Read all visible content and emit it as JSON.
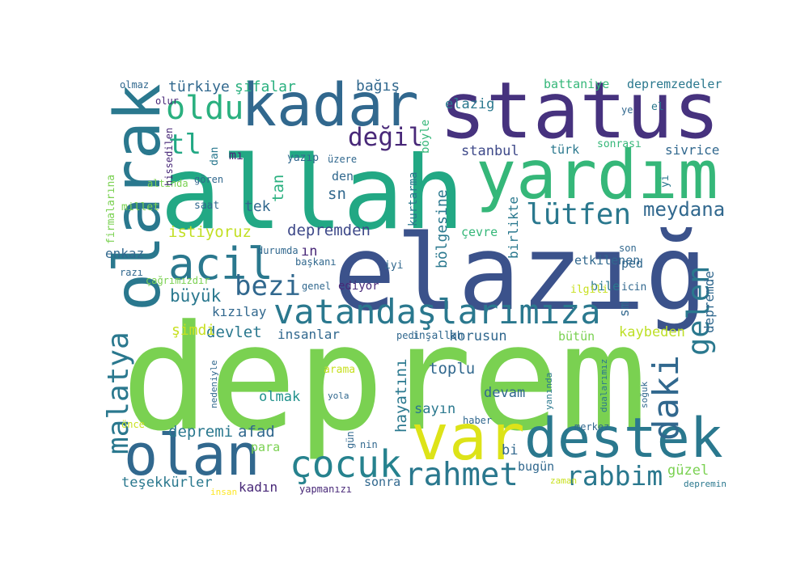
{
  "chart_data": {
    "type": "wordcloud",
    "words": [
      {
        "text": "deprem",
        "weight": 180,
        "color": "#7ad151"
      },
      {
        "text": "elazığ",
        "weight": 128,
        "color": "#3b528b"
      },
      {
        "text": "allah",
        "weight": 125,
        "color": "#22a884"
      },
      {
        "text": "status",
        "weight": 96,
        "color": "#46327e"
      },
      {
        "text": "yardım",
        "weight": 83,
        "color": "#35b779"
      },
      {
        "text": "olarak",
        "weight": 78,
        "color": "#2a788e"
      },
      {
        "text": "kadar",
        "weight": 73,
        "color": "#31688e"
      },
      {
        "text": "destek",
        "weight": 68,
        "color": "#2a788e"
      },
      {
        "text": "var",
        "weight": 78,
        "color": "#dde318"
      },
      {
        "text": "olan",
        "weight": 70,
        "color": "#31688e"
      },
      {
        "text": "acil",
        "weight": 54,
        "color": "#2a788e"
      },
      {
        "text": "vatandaşlarımıza",
        "weight": 42,
        "color": "#2a788e"
      },
      {
        "text": "çocuk",
        "weight": 46,
        "color": "#26828e"
      },
      {
        "text": "rahmet",
        "weight": 39,
        "color": "#2a788e"
      },
      {
        "text": "rabbim",
        "weight": 33,
        "color": "#2a788e"
      },
      {
        "text": "oldu",
        "weight": 40,
        "color": "#2ab07f"
      },
      {
        "text": "değil",
        "weight": 31,
        "color": "#482878"
      },
      {
        "text": "lütfen",
        "weight": 36,
        "color": "#2a788e"
      },
      {
        "text": "bezi",
        "weight": 34,
        "color": "#31688e"
      },
      {
        "text": "daki",
        "weight": 44,
        "color": "#31688e"
      },
      {
        "text": "gelen",
        "weight": 37,
        "color": "#2a788e"
      },
      {
        "text": "malatya",
        "weight": 36,
        "color": "#2a788e"
      },
      {
        "text": "tl",
        "weight": 34,
        "color": "#22a884"
      },
      {
        "text": "meydana",
        "weight": 24,
        "color": "#31688e"
      },
      {
        "text": "türkiye",
        "weight": 18,
        "color": "#31688e"
      },
      {
        "text": "şifalar",
        "weight": 18,
        "color": "#2ab07f"
      },
      {
        "text": "bağış",
        "weight": 18,
        "color": "#31688e"
      },
      {
        "text": "elazig",
        "weight": 17,
        "color": "#2a788e"
      },
      {
        "text": "battaniye",
        "weight": 15,
        "color": "#35b779"
      },
      {
        "text": "depremzedeler",
        "weight": 15,
        "color": "#2a788e"
      },
      {
        "text": "stanbul",
        "weight": 17,
        "color": "#3e4989"
      },
      {
        "text": "sivrice",
        "weight": 16,
        "color": "#31688e"
      },
      {
        "text": "türk",
        "weight": 15,
        "color": "#2a788e"
      },
      {
        "text": "sonrası",
        "weight": 13,
        "color": "#35b779"
      },
      {
        "text": "istiyoruz",
        "weight": 19,
        "color": "#c2df23"
      },
      {
        "text": "depremden",
        "weight": 19,
        "color": "#3e4989"
      },
      {
        "text": "etkilenen",
        "weight": 15,
        "color": "#31688e"
      },
      {
        "text": "büyük",
        "weight": 21,
        "color": "#2a788e"
      },
      {
        "text": "kızılay",
        "weight": 16,
        "color": "#31688e"
      },
      {
        "text": "devlet",
        "weight": 19,
        "color": "#2a788e"
      },
      {
        "text": "şimdi",
        "weight": 18,
        "color": "#c8e020"
      },
      {
        "text": "insanlar",
        "weight": 16,
        "color": "#31688e"
      },
      {
        "text": "korusun",
        "weight": 17,
        "color": "#31688e"
      },
      {
        "text": "bütün",
        "weight": 15,
        "color": "#7ad151"
      },
      {
        "text": "kaybeden",
        "weight": 17,
        "color": "#bddf26"
      },
      {
        "text": "toplu",
        "weight": 19,
        "color": "#31688e"
      },
      {
        "text": "devam",
        "weight": 17,
        "color": "#31688e"
      },
      {
        "text": "sayın",
        "weight": 17,
        "color": "#2a788e"
      },
      {
        "text": "olmak",
        "weight": 17,
        "color": "#21918c"
      },
      {
        "text": "depremi",
        "weight": 19,
        "color": "#2a788e"
      },
      {
        "text": "afad",
        "weight": 19,
        "color": "#31688e"
      },
      {
        "text": "para",
        "weight": 15,
        "color": "#7ad151"
      },
      {
        "text": "teşekkürler",
        "weight": 17,
        "color": "#2a788e"
      },
      {
        "text": "kadın",
        "weight": 16,
        "color": "#482878"
      },
      {
        "text": "sonra",
        "weight": 15,
        "color": "#31688e"
      },
      {
        "text": "bugün",
        "weight": 15,
        "color": "#31688e"
      },
      {
        "text": "güzel",
        "weight": 17,
        "color": "#7ad151"
      },
      {
        "text": "hayatını",
        "weight": 19,
        "color": "#2a788e"
      },
      {
        "text": "sn",
        "weight": 19,
        "color": "#31688e"
      },
      {
        "text": "den",
        "weight": 15,
        "color": "#31688e"
      },
      {
        "text": "tek",
        "weight": 18,
        "color": "#31688e"
      },
      {
        "text": "tan",
        "weight": 19,
        "color": "#2ab07f"
      },
      {
        "text": "kurtarma",
        "weight": 14,
        "color": "#2a788e"
      },
      {
        "text": "bölgesine",
        "weight": 18,
        "color": "#2a788e"
      },
      {
        "text": "birlikte",
        "weight": 16,
        "color": "#2a788e"
      },
      {
        "text": "depremde",
        "weight": 16,
        "color": "#31688e"
      },
      {
        "text": "çevre",
        "weight": 15,
        "color": "#35b779"
      },
      {
        "text": "bile",
        "weight": 15,
        "color": "#2a788e"
      },
      {
        "text": "ped",
        "weight": 15,
        "color": "#31688e"
      },
      {
        "text": "son",
        "weight": 12,
        "color": "#31688e"
      },
      {
        "text": "ilgili",
        "weight": 13,
        "color": "#c8e020"
      },
      {
        "text": "icin",
        "weight": 13,
        "color": "#31688e"
      },
      {
        "text": "ediyor",
        "weight": 14,
        "color": "#482878"
      },
      {
        "text": "genel",
        "weight": 12,
        "color": "#31688e"
      },
      {
        "text": "başkanı",
        "weight": 12,
        "color": "#31688e"
      },
      {
        "text": "iyi",
        "weight": 13,
        "color": "#31688e"
      },
      {
        "text": "sm",
        "weight": 16,
        "color": "#31688e"
      },
      {
        "text": "ın",
        "weight": 17,
        "color": "#482878"
      },
      {
        "text": "durumda",
        "weight": 12,
        "color": "#31688e"
      },
      {
        "text": "enkaz",
        "weight": 16,
        "color": "#31688e"
      },
      {
        "text": "millet",
        "weight": 13,
        "color": "#7ad151"
      },
      {
        "text": "saat",
        "weight": 13,
        "color": "#31688e"
      },
      {
        "text": "altında",
        "weight": 12,
        "color": "#7ad151"
      },
      {
        "text": "gören",
        "weight": 12,
        "color": "#31688e"
      },
      {
        "text": "yazıp",
        "weight": 13,
        "color": "#31688e"
      },
      {
        "text": "üzere",
        "weight": 12,
        "color": "#31688e"
      },
      {
        "text": "mı",
        "weight": 15,
        "color": "#482878"
      },
      {
        "text": "dan",
        "weight": 13,
        "color": "#2a788e"
      },
      {
        "text": "böyle",
        "weight": 14,
        "color": "#35b779"
      },
      {
        "text": "çağrımızdır",
        "weight": 12,
        "color": "#7ad151"
      },
      {
        "text": "razı",
        "weight": 12,
        "color": "#31688e"
      },
      {
        "text": "firmalarına",
        "weight": 13,
        "color": "#7ad151"
      },
      {
        "text": "hissedilen",
        "weight": 12,
        "color": "#482878"
      },
      {
        "text": "olmaz",
        "weight": 12,
        "color": "#31688e"
      },
      {
        "text": "olur",
        "weight": 12,
        "color": "#482878"
      },
      {
        "text": "ye",
        "weight": 12,
        "color": "#31688e"
      },
      {
        "text": "el",
        "weight": 13,
        "color": "#2a788e"
      },
      {
        "text": "yi",
        "weight": 13,
        "color": "#2a788e"
      },
      {
        "text": "pedi",
        "weight": 12,
        "color": "#31688e"
      },
      {
        "text": "inşallah",
        "weight": 13,
        "color": "#31688e"
      },
      {
        "text": "arama",
        "weight": 13,
        "color": "#c8e020"
      },
      {
        "text": "yola",
        "weight": 11,
        "color": "#31688e"
      },
      {
        "text": "haber",
        "weight": 12,
        "color": "#31688e"
      },
      {
        "text": "bi",
        "weight": 17,
        "color": "#31688e"
      },
      {
        "text": "gün",
        "weight": 12,
        "color": "#31688e"
      },
      {
        "text": "nin",
        "weight": 12,
        "color": "#31688e"
      },
      {
        "text": "merkez",
        "weight": 12,
        "color": "#31688e"
      },
      {
        "text": "soğuk",
        "weight": 11,
        "color": "#31688e"
      },
      {
        "text": "önce",
        "weight": 12,
        "color": "#c8e020"
      },
      {
        "text": "yapmanızı",
        "weight": 12,
        "color": "#482878"
      },
      {
        "text": "zaman",
        "weight": 11,
        "color": "#c8e020"
      },
      {
        "text": "depremin",
        "weight": 11,
        "color": "#2a788e"
      },
      {
        "text": "yanında",
        "weight": 11,
        "color": "#2a788e"
      },
      {
        "text": "dualarımız",
        "weight": 11,
        "color": "#2a788e"
      },
      {
        "text": "nedeniyle",
        "weight": 11,
        "color": "#31688e"
      },
      {
        "text": "insan",
        "weight": 11,
        "color": "#fde725"
      }
    ]
  }
}
